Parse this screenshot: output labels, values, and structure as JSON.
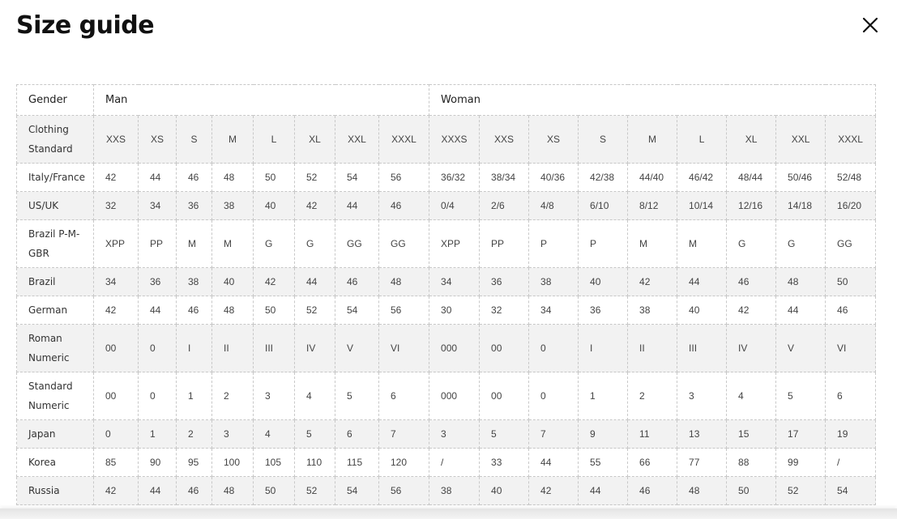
{
  "title": "Size guide",
  "close_icon": "close-icon",
  "header": {
    "gender": "Gender",
    "man": "Man",
    "woman": "Woman"
  },
  "standard": {
    "label": "Clothing Standard",
    "man": [
      "XXS",
      "XS",
      "S",
      "M",
      "L",
      "XL",
      "XXL",
      "XXXL"
    ],
    "woman": [
      "XXXS",
      "XXS",
      "XS",
      "S",
      "M",
      "L",
      "XL",
      "XXL",
      "XXXL"
    ]
  },
  "rows": [
    {
      "label": "Italy/France",
      "man": [
        "42",
        "44",
        "46",
        "48",
        "50",
        "52",
        "54",
        "56"
      ],
      "woman": [
        "36/32",
        "38/34",
        "40/36",
        "42/38",
        "44/40",
        "46/42",
        "48/44",
        "50/46",
        "52/48"
      ]
    },
    {
      "label": "US/UK",
      "man": [
        "32",
        "34",
        "36",
        "38",
        "40",
        "42",
        "44",
        "46"
      ],
      "woman": [
        "0/4",
        "2/6",
        "4/8",
        "6/10",
        "8/12",
        "10/14",
        "12/16",
        "14/18",
        "16/20"
      ]
    },
    {
      "label": "Brazil P-M-GBR",
      "man": [
        "XPP",
        "PP",
        "M",
        "M",
        "G",
        "G",
        "GG",
        "GG"
      ],
      "woman": [
        "XPP",
        "PP",
        "P",
        "P",
        "M",
        "M",
        "G",
        "G",
        "GG"
      ]
    },
    {
      "label": "Brazil",
      "man": [
        "34",
        "36",
        "38",
        "40",
        "42",
        "44",
        "46",
        "48"
      ],
      "woman": [
        "34",
        "36",
        "38",
        "40",
        "42",
        "44",
        "46",
        "48",
        "50"
      ]
    },
    {
      "label": "German",
      "man": [
        "42",
        "44",
        "46",
        "48",
        "50",
        "52",
        "54",
        "56"
      ],
      "woman": [
        "30",
        "32",
        "34",
        "36",
        "38",
        "40",
        "42",
        "44",
        "46"
      ]
    },
    {
      "label": "Roman Numeric",
      "man": [
        "00",
        "0",
        "I",
        "II",
        "III",
        "IV",
        "V",
        "VI"
      ],
      "woman": [
        "000",
        "00",
        "0",
        "I",
        "II",
        "III",
        "IV",
        "V",
        "VI"
      ]
    },
    {
      "label": "Standard Numeric",
      "man": [
        "00",
        "0",
        "1",
        "2",
        "3",
        "4",
        "5",
        "6"
      ],
      "woman": [
        "000",
        "00",
        "0",
        "1",
        "2",
        "3",
        "4",
        "5",
        "6"
      ]
    },
    {
      "label": "Japan",
      "man": [
        "0",
        "1",
        "2",
        "3",
        "4",
        "5",
        "6",
        "7"
      ],
      "woman": [
        "3",
        "5",
        "7",
        "9",
        "11",
        "13",
        "15",
        "17",
        "19"
      ]
    },
    {
      "label": "Korea",
      "man": [
        "85",
        "90",
        "95",
        "100",
        "105",
        "110",
        "115",
        "120"
      ],
      "woman": [
        "/",
        "33",
        "44",
        "55",
        "66",
        "77",
        "88",
        "99",
        "/"
      ]
    },
    {
      "label": "Russia",
      "man": [
        "42",
        "44",
        "46",
        "48",
        "50",
        "52",
        "54",
        "56"
      ],
      "woman": [
        "38",
        "40",
        "42",
        "44",
        "46",
        "48",
        "50",
        "52",
        "54"
      ]
    }
  ]
}
